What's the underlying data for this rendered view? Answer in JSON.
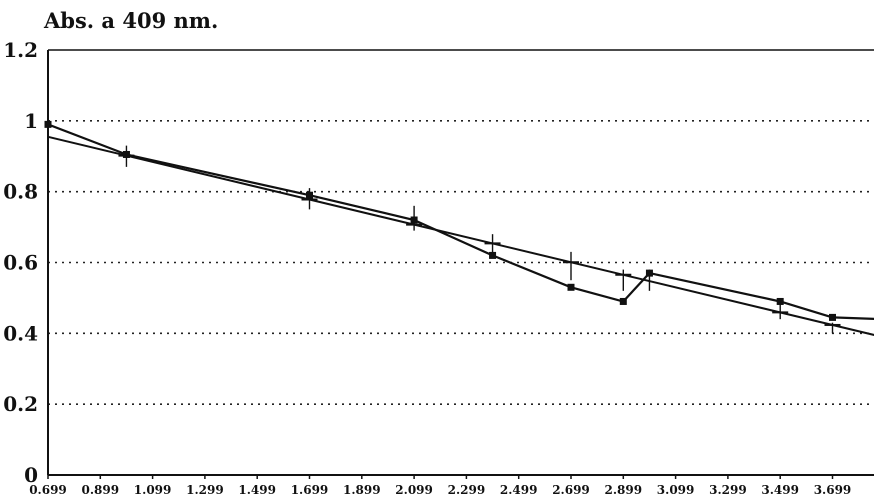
{
  "chart_data": {
    "type": "line",
    "title": "Abs. a 409 nm.",
    "xlabel": "",
    "ylabel": "",
    "xlim": [
      0.699,
      3.889
    ],
    "ylim": [
      0,
      1.2
    ],
    "xticks": [
      "0.699",
      "0.899",
      "1.099",
      "1.299",
      "1.499",
      "1.699",
      "1.899",
      "2.099",
      "2.299",
      "2.499",
      "2.699",
      "2.899",
      "3.099",
      "3.299",
      "3.499",
      "3.699"
    ],
    "yticks": [
      "0",
      "0.2",
      "0.4",
      "0.6",
      "0.8",
      "1",
      "1.2"
    ],
    "yticks_values": [
      0,
      0.2,
      0.4,
      0.6,
      0.8,
      1.0,
      1.2
    ],
    "grid": "horizontal-dotted",
    "series": [
      {
        "style": "line-markers",
        "x": [
          0.699,
          0.999,
          1.699,
          2.099,
          2.399,
          2.699,
          2.899,
          2.999,
          3.499,
          3.699
        ],
        "y": [
          0.99,
          0.905,
          0.79,
          0.72,
          0.62,
          0.53,
          0.49,
          0.57,
          0.49,
          0.445
        ]
      },
      {
        "style": "fit-line",
        "x": [
          0.699,
          3.889
        ],
        "y": [
          0.955,
          0.39
        ]
      },
      {
        "style": "line",
        "x": [
          3.699,
          3.889
        ],
        "y": [
          0.445,
          0.44
        ]
      }
    ],
    "error_bars": [
      {
        "x": 0.999,
        "low": 0.87,
        "high": 0.93
      },
      {
        "x": 1.699,
        "low": 0.75,
        "high": 0.81
      },
      {
        "x": 2.099,
        "low": 0.69,
        "high": 0.76
      },
      {
        "x": 2.399,
        "low": 0.62,
        "high": 0.68
      },
      {
        "x": 2.699,
        "low": 0.55,
        "high": 0.63
      },
      {
        "x": 2.899,
        "low": 0.52,
        "high": 0.58
      },
      {
        "x": 2.999,
        "low": 0.52,
        "high": 0.58
      },
      {
        "x": 3.499,
        "low": 0.44,
        "high": 0.49
      },
      {
        "x": 3.699,
        "low": 0.4,
        "high": 0.43
      }
    ],
    "fit_markers_x": [
      0.999,
      1.699,
      2.099,
      2.399,
      2.699,
      2.899,
      3.499,
      3.699
    ]
  }
}
